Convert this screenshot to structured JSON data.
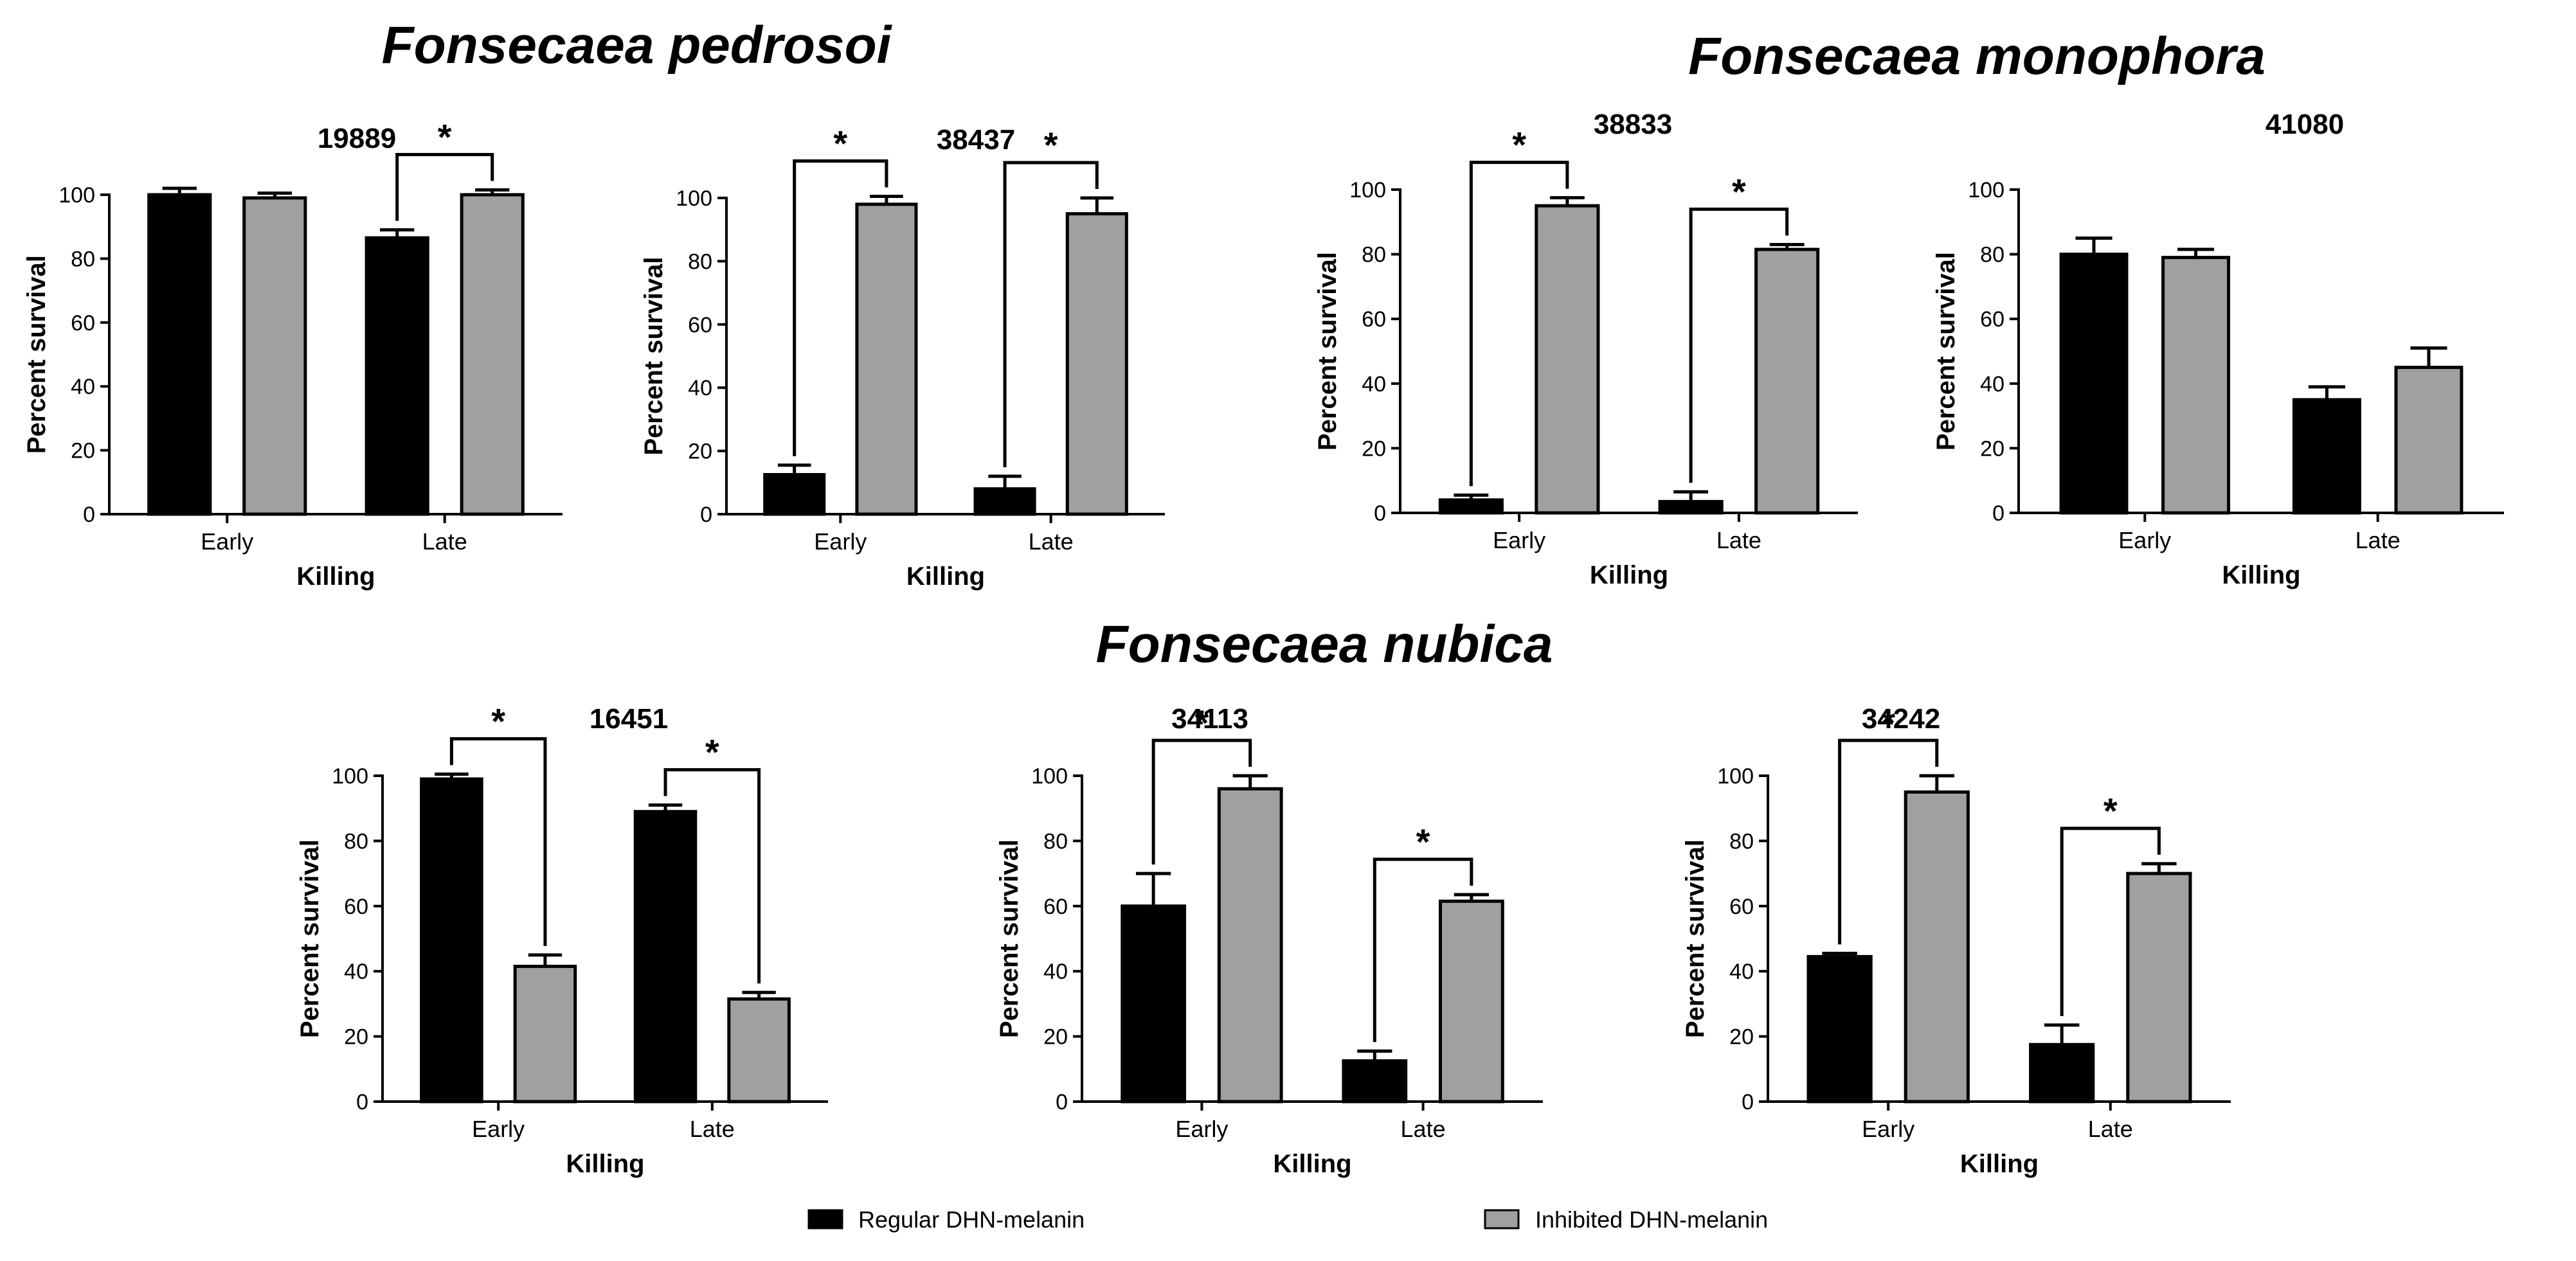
{
  "species_titles": {
    "pedrosoi": "Fonsecaea pedrosoi",
    "monophora": "Fonsecaea monophora",
    "nubica": "Fonsecaea nubica"
  },
  "legend": {
    "regular": "Regular DHN-melanin",
    "inhibited": "Inhibited DHN-melanin"
  },
  "colors": {
    "regular": "#000000",
    "inhibited": "#a0a0a0"
  },
  "chart_data": [
    {
      "type": "bar",
      "title": "19889",
      "species": "Fonsecaea pedrosoi",
      "categories": [
        "Early",
        "Late"
      ],
      "series": [
        {
          "name": "Regular DHN-melanin",
          "values": [
            100,
            86.5
          ],
          "errors": [
            2,
            2.5
          ]
        },
        {
          "name": "Inhibited DHN-melanin",
          "values": [
            99,
            100
          ],
          "errors": [
            1.5,
            1.5
          ]
        }
      ],
      "significance": [
        {
          "category": "Late",
          "label": "*"
        }
      ],
      "xlabel": "Killing",
      "ylabel": "Percent survival",
      "ylim": [
        0,
        100
      ],
      "yticks": [
        0,
        20,
        40,
        60,
        80,
        100
      ]
    },
    {
      "type": "bar",
      "title": "38437",
      "species": "Fonsecaea pedrosoi",
      "categories": [
        "Early",
        "Late"
      ],
      "series": [
        {
          "name": "Regular DHN-melanin",
          "values": [
            12.5,
            8
          ],
          "errors": [
            3,
            4
          ]
        },
        {
          "name": "Inhibited DHN-melanin",
          "values": [
            98,
            95
          ],
          "errors": [
            2.5,
            5
          ]
        }
      ],
      "significance": [
        {
          "category": "Early",
          "label": "*"
        },
        {
          "category": "Late",
          "label": "*"
        }
      ],
      "xlabel": "Killing",
      "ylabel": "Percent survival",
      "ylim": [
        0,
        100
      ],
      "yticks": [
        0,
        20,
        40,
        60,
        80,
        100
      ]
    },
    {
      "type": "bar",
      "title": "38833",
      "species": "Fonsecaea monophora",
      "categories": [
        "Early",
        "Late"
      ],
      "series": [
        {
          "name": "Regular DHN-melanin",
          "values": [
            4,
            3.5
          ],
          "errors": [
            1.5,
            3
          ]
        },
        {
          "name": "Inhibited DHN-melanin",
          "values": [
            95,
            81.5
          ],
          "errors": [
            2.5,
            1.5
          ]
        }
      ],
      "significance": [
        {
          "category": "Early",
          "label": "*"
        },
        {
          "category": "Late",
          "label": "*"
        }
      ],
      "xlabel": "Killing",
      "ylabel": "Percent survival",
      "ylim": [
        0,
        100
      ],
      "yticks": [
        0,
        20,
        40,
        60,
        80,
        100
      ]
    },
    {
      "type": "bar",
      "title": "41080",
      "species": "Fonsecaea monophora",
      "categories": [
        "Early",
        "Late"
      ],
      "series": [
        {
          "name": "Regular DHN-melanin",
          "values": [
            80,
            35
          ],
          "errors": [
            5,
            4
          ]
        },
        {
          "name": "Inhibited DHN-melanin",
          "values": [
            79,
            45
          ],
          "errors": [
            2.5,
            6
          ]
        }
      ],
      "significance": [],
      "xlabel": "Killing",
      "ylabel": "Percent survival",
      "ylim": [
        0,
        100
      ],
      "yticks": [
        0,
        20,
        40,
        60,
        80,
        100
      ]
    },
    {
      "type": "bar",
      "title": "16451",
      "species": "Fonsecaea nubica",
      "categories": [
        "Early",
        "Late"
      ],
      "series": [
        {
          "name": "Regular DHN-melanin",
          "values": [
            99,
            89
          ],
          "errors": [
            1.5,
            2
          ]
        },
        {
          "name": "Inhibited DHN-melanin",
          "values": [
            41.5,
            31.5
          ],
          "errors": [
            3.5,
            2
          ]
        }
      ],
      "significance": [
        {
          "category": "Early",
          "label": "*"
        },
        {
          "category": "Late",
          "label": "*"
        }
      ],
      "xlabel": "Killing",
      "ylabel": "Percent survival",
      "ylim": [
        0,
        100
      ],
      "yticks": [
        0,
        20,
        40,
        60,
        80,
        100
      ]
    },
    {
      "type": "bar",
      "title": "34113",
      "species": "Fonsecaea nubica",
      "categories": [
        "Early",
        "Late"
      ],
      "series": [
        {
          "name": "Regular DHN-melanin",
          "values": [
            60,
            12.5
          ],
          "errors": [
            10,
            3
          ]
        },
        {
          "name": "Inhibited DHN-melanin",
          "values": [
            96,
            61.5
          ],
          "errors": [
            4,
            2
          ]
        }
      ],
      "significance": [
        {
          "category": "Early",
          "label": "*"
        },
        {
          "category": "Late",
          "label": "*"
        }
      ],
      "xlabel": "Killing",
      "ylabel": "Percent survival",
      "ylim": [
        0,
        100
      ],
      "yticks": [
        0,
        20,
        40,
        60,
        80,
        100
      ]
    },
    {
      "type": "bar",
      "title": "34242",
      "species": "Fonsecaea nubica",
      "categories": [
        "Early",
        "Late"
      ],
      "series": [
        {
          "name": "Regular DHN-melanin",
          "values": [
            44.5,
            17.5
          ],
          "errors": [
            1,
            6
          ]
        },
        {
          "name": "Inhibited DHN-melanin",
          "values": [
            95,
            70
          ],
          "errors": [
            5,
            3
          ]
        }
      ],
      "significance": [
        {
          "category": "Early",
          "label": "*"
        },
        {
          "category": "Late",
          "label": "*"
        }
      ],
      "xlabel": "Killing",
      "ylabel": "Percent survival",
      "ylim": [
        0,
        100
      ],
      "yticks": [
        0,
        20,
        40,
        60,
        80,
        100
      ]
    }
  ]
}
